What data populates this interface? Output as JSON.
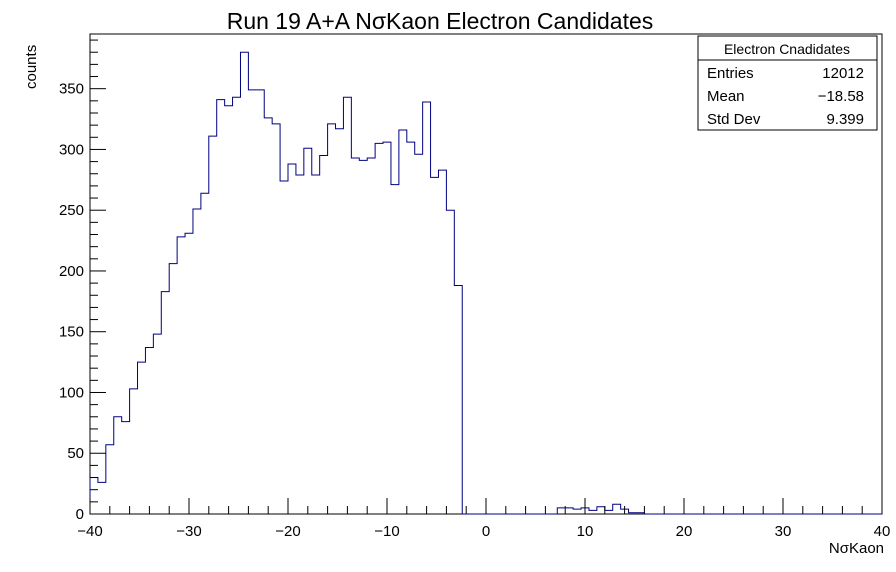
{
  "chart_data": {
    "type": "histogram",
    "title": "Run 19 A+A NσKaon Electron Candidates",
    "xlabel": "NσKaon",
    "ylabel": "counts",
    "xlim": [
      -40,
      40
    ],
    "ylim": [
      0,
      395
    ],
    "bin_width": 0.8,
    "x_start": -40,
    "x_ticks": [
      -40,
      -30,
      -20,
      -10,
      0,
      10,
      20,
      30,
      40
    ],
    "x_tick_labels": [
      "−40",
      "−30",
      "−20",
      "−10",
      "0",
      "10",
      "20",
      "30",
      "40"
    ],
    "y_ticks": [
      0,
      50,
      100,
      150,
      200,
      250,
      300,
      350
    ],
    "y_tick_labels": [
      "0",
      "50",
      "100",
      "150",
      "200",
      "250",
      "300",
      "350"
    ],
    "grid": false,
    "line_color": "#000080",
    "values": [
      30,
      26,
      57,
      80,
      76,
      103,
      125,
      137,
      148,
      183,
      206,
      228,
      231,
      251,
      264,
      311,
      341,
      336,
      343,
      380,
      349,
      349,
      326,
      321,
      274,
      288,
      279,
      301,
      279,
      295,
      321,
      317,
      343,
      293,
      291,
      293,
      305,
      306,
      271,
      316,
      306,
      296,
      339,
      277,
      283,
      250,
      188,
      0,
      0,
      0,
      0,
      0,
      0,
      0,
      0,
      0,
      0,
      0,
      0,
      5,
      5,
      4,
      5,
      3,
      6,
      3,
      8,
      4,
      1,
      1,
      0,
      0,
      0,
      0,
      0,
      0,
      0,
      0,
      0,
      0,
      0,
      0,
      0,
      0,
      0,
      0,
      0,
      0,
      0,
      0,
      0,
      0,
      0,
      0,
      0,
      0,
      0,
      0,
      0,
      0
    ],
    "stats_box": {
      "title": "Electron Cnadidates",
      "rows": [
        {
          "label": "Entries",
          "value": "12012"
        },
        {
          "label": "Mean",
          "value": "−18.58"
        },
        {
          "label": "Std Dev",
          "value": "9.399"
        }
      ]
    }
  }
}
